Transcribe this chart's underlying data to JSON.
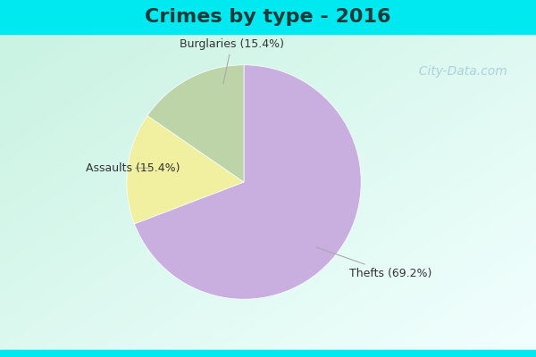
{
  "title": "Crimes by type - 2016",
  "slices": [
    {
      "label": "Thefts (69.2%)",
      "value": 69.2,
      "color": "#c9aee0"
    },
    {
      "label": "Burglaries (15.4%)",
      "value": 15.4,
      "color": "#f0f0a0"
    },
    {
      "label": "Assaults (15.4%)",
      "value": 15.4,
      "color": "#bdd4a8"
    }
  ],
  "background_top": "#00e8f0",
  "background_bottom": "#00e8f0",
  "background_main_tl": "#c8ede0",
  "background_main_br": "#e8f8f0",
  "title_fontsize": 16,
  "label_fontsize": 9,
  "annotation_color": "#333333",
  "watermark": "  City-Data.com",
  "watermark_color": "#a0c8d8"
}
